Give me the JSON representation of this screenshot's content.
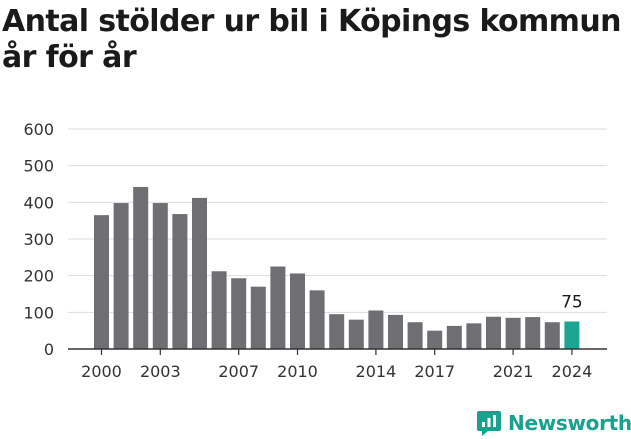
{
  "title_lines": [
    "Antal stölder ur bil i Köpings kommun",
    "år för år"
  ],
  "brand": {
    "name": "Newsworthy",
    "icon": "newsworthy-logo-icon",
    "color": "#1aa08f"
  },
  "colors": {
    "bar": "#6f6e73",
    "highlight": "#1aa594",
    "grid": "#dddddd",
    "axis": "#333333"
  },
  "chart_data": {
    "type": "bar",
    "title": "Antal stölder ur bil i Köpings kommun år för år",
    "categories": [
      2000,
      2001,
      2002,
      2003,
      2004,
      2005,
      2006,
      2007,
      2008,
      2009,
      2010,
      2011,
      2012,
      2013,
      2014,
      2015,
      2016,
      2017,
      2018,
      2019,
      2020,
      2021,
      2022,
      2023,
      2024
    ],
    "values": [
      365,
      398,
      442,
      398,
      368,
      412,
      212,
      193,
      170,
      225,
      206,
      160,
      95,
      80,
      105,
      93,
      73,
      50,
      63,
      70,
      88,
      85,
      87,
      73,
      75
    ],
    "highlight_index": 24,
    "highlight_label": "75",
    "x_tick_labels": [
      "2000",
      "2003",
      "2007",
      "2010",
      "2014",
      "2017",
      "2021",
      "2024"
    ],
    "y_ticks": [
      0,
      100,
      200,
      300,
      400,
      500,
      600
    ],
    "ylim": [
      0,
      600
    ],
    "xlabel": "",
    "ylabel": "",
    "grid": true,
    "legend": "none"
  }
}
